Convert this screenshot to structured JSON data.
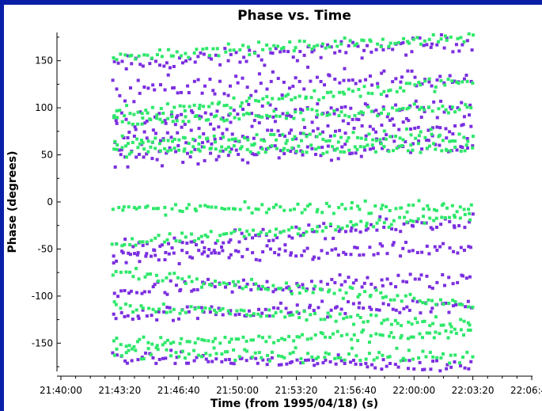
{
  "colors": {
    "window_background": "#0a1fa8",
    "plot_background": "#ffffff",
    "series_1": "#7b2ee0",
    "series_2": "#2ee86a"
  },
  "chart_data": {
    "type": "scatter",
    "title": "Phase vs. Time",
    "xlabel": "Time (from 1995/04/18) (s)",
    "ylabel": "Phase (degrees)",
    "x_tick_labels": [
      "21:40:00",
      "21:43:20",
      "21:46:40",
      "21:50:00",
      "21:53:20",
      "21:56:40",
      "22:00:00",
      "22:03:20",
      "22:06:40"
    ],
    "x_ticks_seconds": [
      78000,
      78200,
      78400,
      78600,
      78800,
      79000,
      79200,
      79400,
      79600
    ],
    "xlim_seconds": [
      78000,
      79600
    ],
    "data_x_range_seconds": [
      78180,
      79395
    ],
    "y_ticks": [
      -150,
      -100,
      -50,
      0,
      50,
      100,
      150
    ],
    "ylim": [
      -180,
      180
    ],
    "grid": false,
    "series": [
      {
        "color": "#7b2ee0",
        "tracks": [
          {
            "start": 145,
            "end": 170,
            "noise": 8
          },
          {
            "start": 120,
            "end": 132,
            "noise": 12
          },
          {
            "start": 88,
            "end": 100,
            "noise": 10
          },
          {
            "start": 70,
            "end": 80,
            "noise": 10
          },
          {
            "start": 48,
            "end": 60,
            "noise": 9
          },
          {
            "start": -50,
            "end": -20,
            "noise": 8
          },
          {
            "start": -60,
            "end": -50,
            "noise": 7
          },
          {
            "start": -95,
            "end": -82,
            "noise": 8
          },
          {
            "start": -120,
            "end": -110,
            "noise": 7
          },
          {
            "start": -165,
            "end": -175,
            "noise": 6
          }
        ]
      },
      {
        "color": "#2ee86a",
        "tracks": [
          {
            "start": 155,
            "end": 175,
            "noise": 5
          },
          {
            "start": 95,
            "end": 128,
            "noise": 6
          },
          {
            "start": 85,
            "end": 100,
            "noise": 5
          },
          {
            "start": 65,
            "end": 70,
            "noise": 6
          },
          {
            "start": 55,
            "end": 58,
            "noise": 5
          },
          {
            "start": -8,
            "end": -5,
            "noise": 5
          },
          {
            "start": -45,
            "end": -15,
            "noise": 5
          },
          {
            "start": -75,
            "end": -108,
            "noise": 5
          },
          {
            "start": -110,
            "end": -130,
            "noise": 5
          },
          {
            "start": -150,
            "end": -140,
            "noise": 5
          },
          {
            "start": -160,
            "end": -165,
            "noise": 6
          }
        ]
      }
    ]
  }
}
